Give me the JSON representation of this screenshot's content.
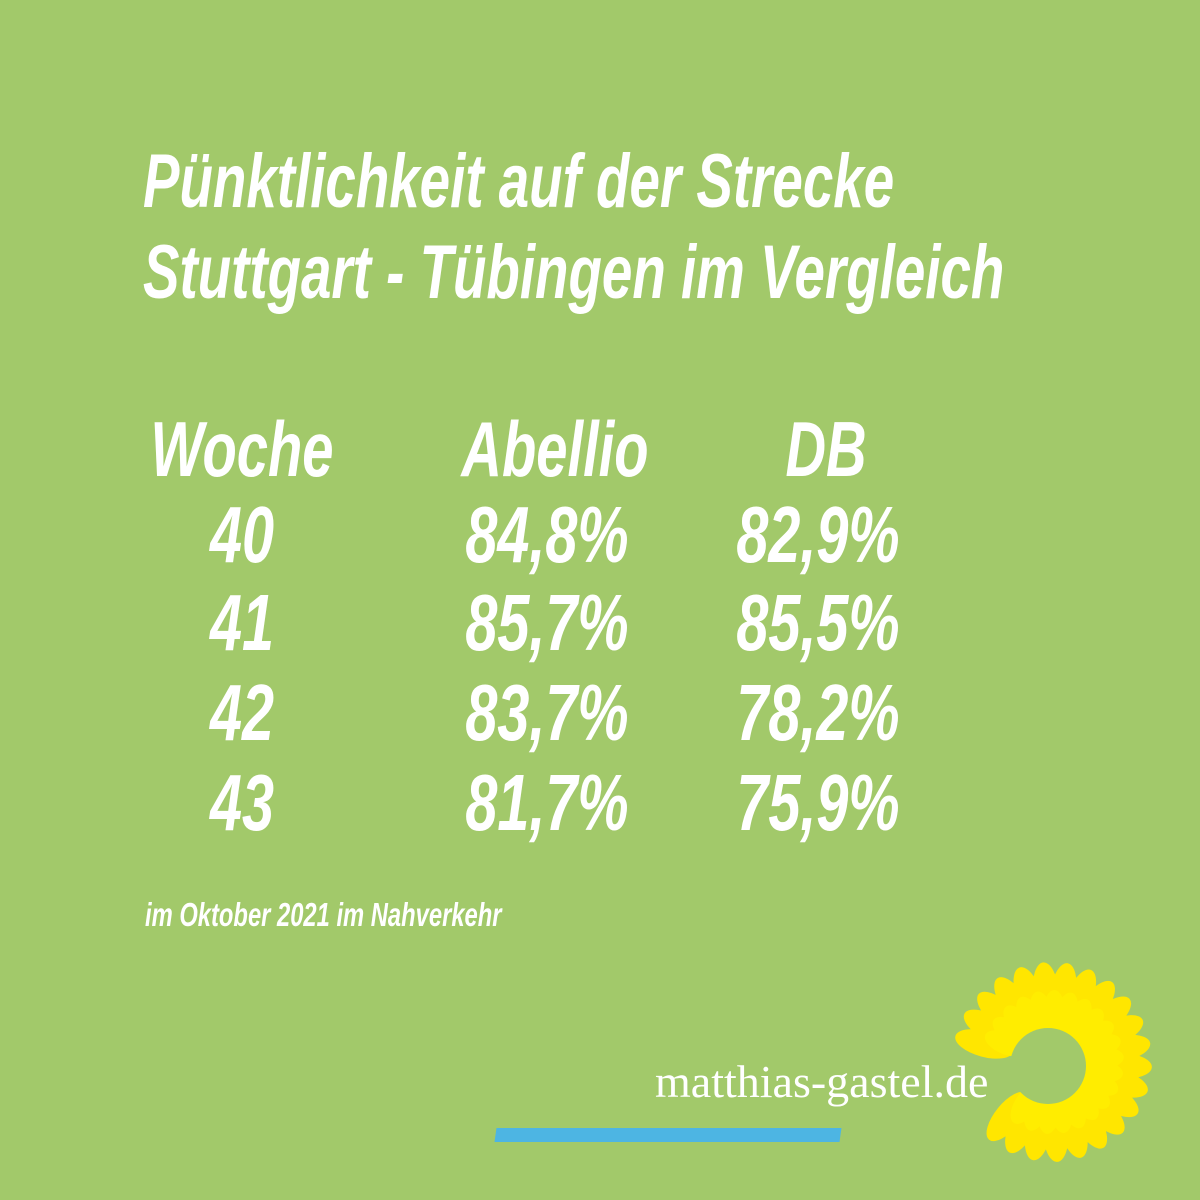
{
  "header": {
    "title_lines": [
      "Pünktlichkeit auf der Strecke",
      "Stuttgart - Tübingen im Vergleich"
    ]
  },
  "table": {
    "headers": [
      "Woche",
      "Abellio",
      "DB"
    ],
    "rows": [
      [
        "40",
        "84,8%",
        "82,9%"
      ],
      [
        "41",
        "85,7%",
        "85,5%"
      ],
      [
        "42",
        "83,7%",
        "78,2%"
      ],
      [
        "43",
        "81,7%",
        "75,9%"
      ]
    ]
  },
  "footnote": "im Oktober 2021 im Nahverkehr",
  "footer": {
    "website": "matthias-gastel.de"
  }
}
